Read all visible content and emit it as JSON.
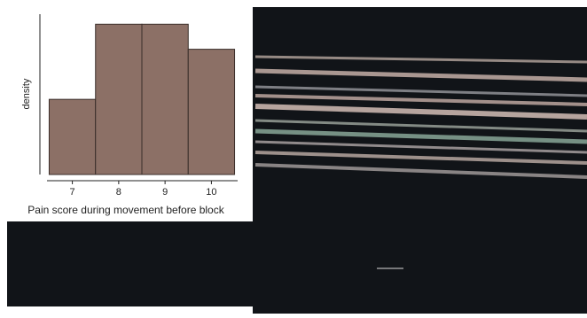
{
  "chart_data": {
    "type": "histogram",
    "x_label": "Pain score during movement before block",
    "y_label": "density",
    "bins": [
      6.5,
      7.5,
      8.5,
      9.5,
      10.5
    ],
    "values": [
      0.15,
      0.3,
      0.3,
      0.25
    ],
    "color": "#8c7066",
    "xlim": [
      6.3,
      10.7
    ],
    "xticks": [
      7,
      8,
      9,
      10
    ],
    "ylim": [
      0,
      0.32
    ]
  }
}
